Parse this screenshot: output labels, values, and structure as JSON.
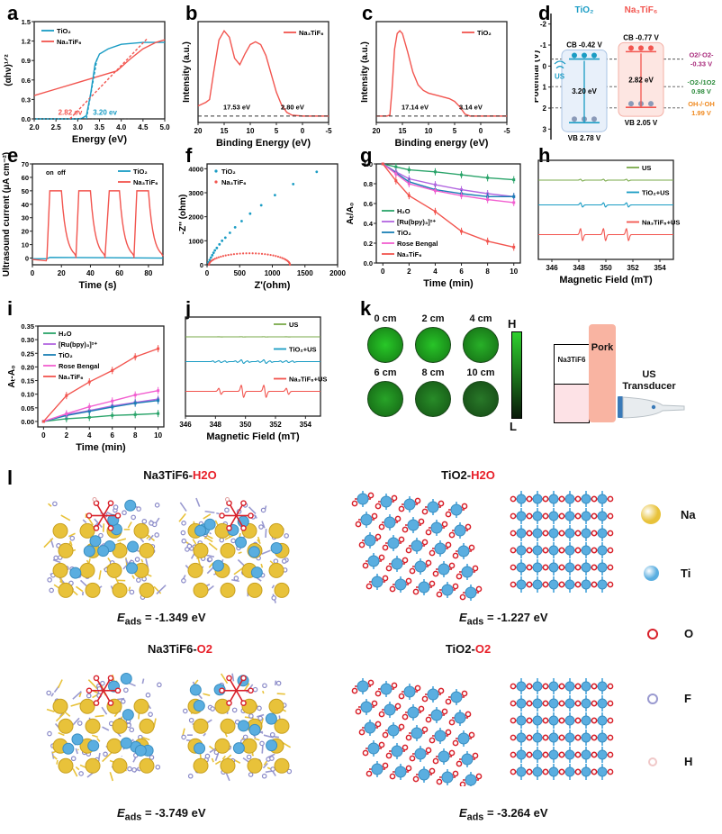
{
  "panel_labels": [
    "a",
    "b",
    "c",
    "d",
    "e",
    "f",
    "g",
    "h",
    "i",
    "j",
    "k",
    "l"
  ],
  "colors": {
    "tio2": "#1a9cc4",
    "na3tif6": "#f2554f",
    "us": "#7aaa4a",
    "h2o": "#2aa46a",
    "ru": "#b266e0",
    "rose": "#f25fd0",
    "tio2_g": "#1a7fb5",
    "o2_purple": "#a8287a",
    "green_ros": "#2a8a3a",
    "orange": "#f08a20"
  },
  "chart_data": [
    {
      "id": "a",
      "type": "line",
      "xlabel": "Energy (eV)",
      "ylabel": "(αhv)^1/2",
      "xlim": [
        2.0,
        5.0
      ],
      "ylim": [
        0.0,
        1.5
      ],
      "xticks": [
        "2.0",
        "2.5",
        "3.0",
        "3.5",
        "4.0",
        "4.5",
        "5.0"
      ],
      "yticks": [
        "0.0",
        "0.3",
        "0.6",
        "0.9",
        "1.2",
        "1.5"
      ],
      "series": [
        {
          "name": "TiO2",
          "x": [
            2.0,
            3.0,
            3.1,
            3.2,
            3.3,
            3.4,
            3.5,
            3.7,
            4.0,
            4.5,
            5.0
          ],
          "y": [
            0.0,
            0.0,
            0.01,
            0.05,
            0.4,
            0.85,
            1.0,
            1.08,
            1.15,
            1.18,
            1.18
          ]
        },
        {
          "name": "Na3TiF6",
          "x": [
            2.0,
            2.5,
            3.0,
            3.5,
            3.9,
            4.2,
            4.5,
            4.8,
            5.0
          ],
          "y": [
            0.36,
            0.46,
            0.56,
            0.66,
            0.74,
            0.92,
            1.08,
            1.18,
            1.22
          ]
        }
      ],
      "annotations": [
        {
          "text": "2.82 ev",
          "series": "Na3TiF6"
        },
        {
          "text": "3.20 ev",
          "series": "TiO2"
        }
      ],
      "legend": "top-left"
    },
    {
      "id": "b",
      "type": "line",
      "xlabel": "Binding Energy (eV)",
      "ylabel": "Intensity (a.u.)",
      "xlim": [
        20,
        -5
      ],
      "xticks": [
        "20",
        "15",
        "10",
        "5",
        "0",
        "-5"
      ],
      "series": [
        {
          "name": "Na3TiF6",
          "x": [
            20,
            18.5,
            17.8,
            17,
            16,
            15,
            14,
            13,
            12,
            11,
            10,
            9,
            8,
            7,
            6,
            5,
            4,
            3,
            2,
            0,
            -5
          ],
          "y": [
            0.13,
            0.17,
            0.2,
            0.5,
            0.85,
            0.95,
            0.88,
            0.65,
            0.58,
            0.7,
            0.8,
            0.83,
            0.8,
            0.68,
            0.48,
            0.28,
            0.14,
            0.06,
            0.03,
            0.02,
            0.02
          ]
        }
      ],
      "annotations": [
        {
          "text": "17.53 eV"
        },
        {
          "text": "2.80 eV"
        }
      ],
      "legend": "top-right"
    },
    {
      "id": "c",
      "type": "line",
      "xlabel": "Binding energy (eV)",
      "ylabel": "Intensity (a.u.)",
      "xlim": [
        20,
        -5
      ],
      "xticks": [
        "20",
        "15",
        "10",
        "5",
        "0",
        "-5"
      ],
      "series": [
        {
          "name": "TiO2",
          "x": [
            20,
            18,
            17.4,
            17,
            16.5,
            16,
            15.5,
            15,
            14,
            13,
            12,
            11,
            10,
            8,
            6,
            5,
            4,
            3,
            2,
            0,
            -5
          ],
          "y": [
            0.02,
            0.02,
            0.03,
            0.3,
            0.75,
            0.92,
            0.95,
            0.92,
            0.72,
            0.5,
            0.36,
            0.3,
            0.27,
            0.24,
            0.21,
            0.18,
            0.12,
            0.04,
            0.02,
            0.02,
            0.02
          ]
        }
      ],
      "annotations": [
        {
          "text": "17.14 eV"
        },
        {
          "text": "3.14 eV"
        }
      ],
      "legend": "top-right"
    },
    {
      "id": "d",
      "type": "diagram",
      "ylabel": "Potential (V)",
      "ylim": [
        -2.5,
        3.5
      ],
      "yticks": [
        "-2",
        "-1",
        "0",
        "1",
        "2",
        "3"
      ],
      "materials": [
        {
          "name": "TiO2",
          "cb": "CB -0.42 V",
          "vb": "VB 2.78 V",
          "gap": "3.20 eV",
          "cb_v": -0.42,
          "vb_v": 2.78
        },
        {
          "name": "Na3TiF6",
          "cb": "CB -0.77 V",
          "vb": "VB 2.05 V",
          "gap": "2.82 eV",
          "cb_v": -0.77,
          "vb_v": 2.05
        }
      ],
      "levels": [
        {
          "label": "O2/·O2-",
          "value_text": "-0.33 V",
          "v": -0.33
        },
        {
          "label": "·O2-/1O2",
          "value_text": "0.98 V",
          "v": 0.98
        },
        {
          "label": "OH-/·OH",
          "value_text": "1.99 V",
          "v": 1.99
        }
      ],
      "us_label": "US"
    },
    {
      "id": "e",
      "type": "line",
      "xlabel": "Time (s)",
      "ylabel": "Ultrasound current (μA cm-2)",
      "xlim": [
        0,
        90
      ],
      "ylim": [
        -5,
        70
      ],
      "xticks": [
        "0",
        "20",
        "40",
        "60",
        "80"
      ],
      "yticks": [
        "0",
        "10",
        "20",
        "30",
        "40",
        "50",
        "60",
        "70"
      ],
      "annotations": [
        {
          "text": "on"
        },
        {
          "text": "off"
        }
      ],
      "series": [
        {
          "name": "TiO2",
          "x": [
            0,
            10,
            12,
            90
          ],
          "y": [
            -0.5,
            -0.5,
            0.5,
            0
          ]
        },
        {
          "name": "Na3TiF6",
          "pulses": [
            [
              10,
              12,
              20,
              30
            ],
            [
              30,
              32,
              40,
              50
            ],
            [
              50,
              53,
              60,
              70
            ],
            [
              70,
              72,
              80,
              90
            ]
          ],
          "plateau": 50
        }
      ],
      "legend": "top-right"
    },
    {
      "id": "f",
      "type": "scatter",
      "xlabel": "Z'(ohm)",
      "ylabel": "-Z''(ohm)",
      "xlim": [
        0,
        2000
      ],
      "ylim": [
        0,
        4000
      ],
      "xticks": [
        "0",
        "500",
        "1000",
        "1500",
        "2000"
      ],
      "yticks": [
        "0",
        "1000",
        "2000",
        "3000",
        "4000"
      ],
      "series": [
        {
          "name": "TiO2",
          "x": [
            20,
            40,
            60,
            80,
            100,
            120,
            150,
            190,
            230,
            280,
            350,
            430,
            530,
            660,
            830,
            1040,
            1320,
            1680
          ],
          "y": [
            100,
            200,
            300,
            400,
            500,
            600,
            700,
            850,
            1000,
            1130,
            1330,
            1560,
            1820,
            2130,
            2480,
            2900,
            3360,
            3870
          ]
        },
        {
          "name": "Na3TiF6",
          "semicircle": {
            "center": 650,
            "radius": 620,
            "max": 480
          }
        }
      ],
      "legend": "top-left"
    },
    {
      "id": "g",
      "type": "line",
      "xlabel": "Time (min)",
      "ylabel": "At/A0",
      "xlim": [
        0,
        10
      ],
      "ylim": [
        0,
        1.0
      ],
      "xticks": [
        "0",
        "2",
        "4",
        "6",
        "8",
        "10"
      ],
      "yticks": [
        "0.0",
        "0.2",
        "0.4",
        "0.6",
        "0.8",
        "1.0"
      ],
      "x": [
        0,
        1,
        2,
        4,
        6,
        8,
        10
      ],
      "series": [
        {
          "name": "H2O",
          "values": [
            1.0,
            0.97,
            0.94,
            0.92,
            0.89,
            0.86,
            0.84
          ]
        },
        {
          "name": "[Ru(bpy)3]2+",
          "values": [
            1.0,
            0.92,
            0.85,
            0.79,
            0.74,
            0.7,
            0.67
          ]
        },
        {
          "name": "TiO2",
          "values": [
            1.0,
            0.91,
            0.82,
            0.74,
            0.7,
            0.67,
            0.67
          ]
        },
        {
          "name": "Rose Bengal",
          "values": [
            1.0,
            0.9,
            0.8,
            0.73,
            0.68,
            0.64,
            0.61
          ]
        },
        {
          "name": "Na3TiF6",
          "values": [
            1.0,
            0.83,
            0.68,
            0.52,
            0.32,
            0.22,
            0.16
          ]
        }
      ],
      "legend": "bottom-left"
    },
    {
      "id": "h",
      "type": "line",
      "xlabel": "Magnetic Field (mT)",
      "xlim": [
        345,
        355
      ],
      "xticks": [
        "346",
        "348",
        "350",
        "352",
        "354"
      ],
      "series": [
        {
          "name": "US",
          "amp": 0.15
        },
        {
          "name": "TiO2+US",
          "amp": 0.35
        },
        {
          "name": "Na3TiF6+US",
          "amp": 1.0
        }
      ],
      "peaks": [
        348.2,
        349.9,
        351.6
      ],
      "legend": "right"
    },
    {
      "id": "i",
      "type": "line",
      "xlabel": "Time (min)",
      "ylabel": "At-A0",
      "xlim": [
        0,
        10
      ],
      "ylim": [
        -0.02,
        0.35
      ],
      "xticks": [
        "0",
        "2",
        "4",
        "6",
        "8",
        "10"
      ],
      "yticks": [
        "0.00",
        "0.05",
        "0.10",
        "0.15",
        "0.20",
        "0.25",
        "0.30",
        "0.35"
      ],
      "x": [
        0,
        2,
        4,
        6,
        8,
        10
      ],
      "series": [
        {
          "name": "H2O",
          "values": [
            0.0,
            0.01,
            0.015,
            0.022,
            0.025,
            0.029
          ]
        },
        {
          "name": "[Ru(bpy)3]2+",
          "values": [
            0.0,
            0.025,
            0.04,
            0.057,
            0.07,
            0.082
          ]
        },
        {
          "name": "TiO2",
          "values": [
            0.0,
            0.022,
            0.037,
            0.053,
            0.067,
            0.077
          ]
        },
        {
          "name": "Rose Bengal",
          "values": [
            0.0,
            0.028,
            0.054,
            0.075,
            0.097,
            0.113
          ]
        },
        {
          "name": "Na3TiF6",
          "values": [
            0.0,
            0.095,
            0.145,
            0.187,
            0.237,
            0.267
          ]
        }
      ],
      "legend": "top-left"
    },
    {
      "id": "j",
      "type": "line",
      "xlabel": "Magnetic Field (mT)",
      "xlim": [
        346,
        355
      ],
      "xticks": [
        "346",
        "348",
        "350",
        "352",
        "354"
      ],
      "series": [
        {
          "name": "US",
          "amp": 0.02
        },
        {
          "name": "TiO2+US",
          "amp": 0.3
        },
        {
          "name": "Na3TiF6+US",
          "amp": 1.0
        }
      ],
      "peaks": [
        348.3,
        349.8,
        351.3,
        352.8
      ],
      "legend": "right"
    }
  ],
  "panel_k": {
    "wells": [
      {
        "label": "0 cm",
        "intensity": 1.0
      },
      {
        "label": "2 cm",
        "intensity": 0.98
      },
      {
        "label": "4 cm",
        "intensity": 0.88
      },
      {
        "label": "6 cm",
        "intensity": 0.82
      },
      {
        "label": "8 cm",
        "intensity": 0.7
      },
      {
        "label": "10 cm",
        "intensity": 0.6
      }
    ],
    "scale_high": "H",
    "scale_low": "L",
    "sample_label": "Na3TiF6",
    "pork_label": "Pork",
    "transducer_label": "US Transducer"
  },
  "panel_l": {
    "structures": [
      {
        "host": "Na3TiF6",
        "adsorbate": "H2O",
        "eads": "= -1.349 eV"
      },
      {
        "host": "TiO2",
        "adsorbate": "H2O",
        "eads": "= -1.227 eV"
      },
      {
        "host": "Na3TiF6",
        "adsorbate": "O2",
        "eads": "= -3.749 eV"
      },
      {
        "host": "TiO2",
        "adsorbate": "O2",
        "eads": "= -3.264 eV"
      }
    ],
    "eads_symbol": "E",
    "eads_sub": "ads",
    "legend": [
      {
        "name": "Na",
        "color": "#e8c23a",
        "size": "large"
      },
      {
        "name": "Ti",
        "color": "#5aaee0",
        "size": "medium"
      },
      {
        "name": "O",
        "color": "#d8202a",
        "size": "small"
      },
      {
        "name": "F",
        "color": "#9a9ad0",
        "size": "small"
      },
      {
        "name": "H",
        "color": "#f0c8c8",
        "size": "tiny"
      }
    ]
  }
}
